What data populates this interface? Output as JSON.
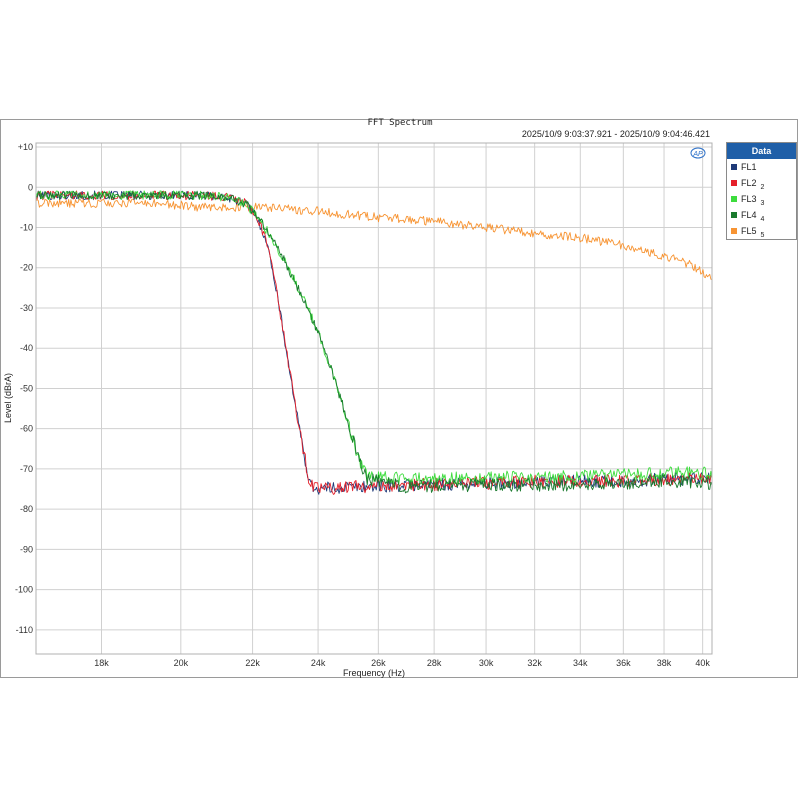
{
  "chart_data": {
    "type": "line",
    "title": "FFT Spectrum",
    "subtitle": "2025/10/9 9:03:37.921 -   2025/10/9 9:04:46.421",
    "xlabel": "Frequency (Hz)",
    "ylabel": "Level (dBrA)",
    "xscale": "log",
    "xlim": [
      16500,
      40500
    ],
    "ylim": [
      -116,
      11
    ],
    "x_ticks": [
      18000,
      20000,
      22000,
      24000,
      26000,
      28000,
      30000,
      32000,
      34000,
      36000,
      38000,
      40000
    ],
    "x_tick_labels": [
      "18k",
      "20k",
      "22k",
      "24k",
      "26k",
      "28k",
      "30k",
      "32k",
      "34k",
      "36k",
      "38k",
      "40k"
    ],
    "y_ticks": [
      10,
      0,
      -10,
      -20,
      -30,
      -40,
      -50,
      -60,
      -70,
      -80,
      -90,
      -100,
      -110
    ],
    "y_tick_labels": [
      "+10",
      "0",
      "-10",
      "-20",
      "-30",
      "-40",
      "-50",
      "-60",
      "-70",
      "-80",
      "-90",
      "-100",
      "-110"
    ],
    "grid": true,
    "legend": {
      "title": "Data",
      "position": "right"
    },
    "series": [
      {
        "name": "FL1",
        "sub": "",
        "color": "#1f3a78",
        "x": [
          16500,
          17500,
          18500,
          19500,
          20500,
          21300,
          21800,
          22100,
          22400,
          22700,
          23000,
          23300,
          23600,
          23750,
          24000,
          25000,
          27000,
          30000,
          33000,
          36000,
          38000,
          40500
        ],
        "y": [
          -2,
          -2,
          -2,
          -2,
          -2,
          -2.5,
          -4,
          -7,
          -13,
          -25,
          -40,
          -55,
          -68,
          -74,
          -75,
          -74.5,
          -74,
          -73.5,
          -73,
          -73,
          -72.5,
          -72.5
        ]
      },
      {
        "name": "FL2",
        "sub": "2",
        "color": "#e5202a",
        "x": [
          16500,
          17500,
          18500,
          19500,
          20500,
          21300,
          21800,
          22100,
          22400,
          22700,
          23000,
          23300,
          23600,
          23750,
          24000,
          25000,
          27000,
          30000,
          33000,
          36000,
          38000,
          40500
        ],
        "y": [
          -2,
          -2,
          -2,
          -2,
          -2,
          -2.5,
          -4,
          -7,
          -13,
          -25,
          -40,
          -55,
          -68,
          -74,
          -75,
          -74.5,
          -74,
          -73.5,
          -73,
          -73,
          -72.5,
          -72.5
        ]
      },
      {
        "name": "FL3",
        "sub": "3",
        "color": "#3ddc3d",
        "x": [
          16500,
          17500,
          18500,
          19500,
          20500,
          21300,
          21800,
          22200,
          22600,
          23000,
          23500,
          24000,
          24500,
          25000,
          25300,
          25600,
          27000,
          30000,
          33000,
          36000,
          38000,
          40500
        ],
        "y": [
          -2,
          -2,
          -2,
          -2,
          -2,
          -2.5,
          -4,
          -8,
          -13,
          -19,
          -27,
          -36,
          -47,
          -59,
          -67,
          -72,
          -72.5,
          -72,
          -72,
          -71.5,
          -71,
          -71
        ]
      },
      {
        "name": "FL4",
        "sub": "4",
        "color": "#1a7a2e",
        "x": [
          16500,
          17500,
          18500,
          19500,
          20500,
          21300,
          21800,
          22200,
          22600,
          23000,
          23500,
          24000,
          24500,
          25000,
          25300,
          25600,
          27000,
          30000,
          33000,
          36000,
          38000,
          40500
        ],
        "y": [
          -2,
          -2,
          -2,
          -2,
          -2,
          -2.5,
          -4,
          -8,
          -13,
          -19,
          -27,
          -36,
          -47,
          -59,
          -67,
          -72.5,
          -74.5,
          -74,
          -74,
          -73.5,
          -73,
          -73.5
        ]
      },
      {
        "name": "FL5",
        "sub": "5",
        "color": "#f79433",
        "x": [
          16500,
          17500,
          18500,
          19500,
          20500,
          21500,
          22500,
          24000,
          26000,
          28000,
          30000,
          32000,
          34000,
          36000,
          38000,
          39500,
          40500
        ],
        "y": [
          -4,
          -4,
          -4,
          -4,
          -5,
          -5,
          -5,
          -6,
          -7.5,
          -8.5,
          -10,
          -11.5,
          -12.5,
          -14.5,
          -17,
          -19.5,
          -23
        ]
      }
    ]
  }
}
